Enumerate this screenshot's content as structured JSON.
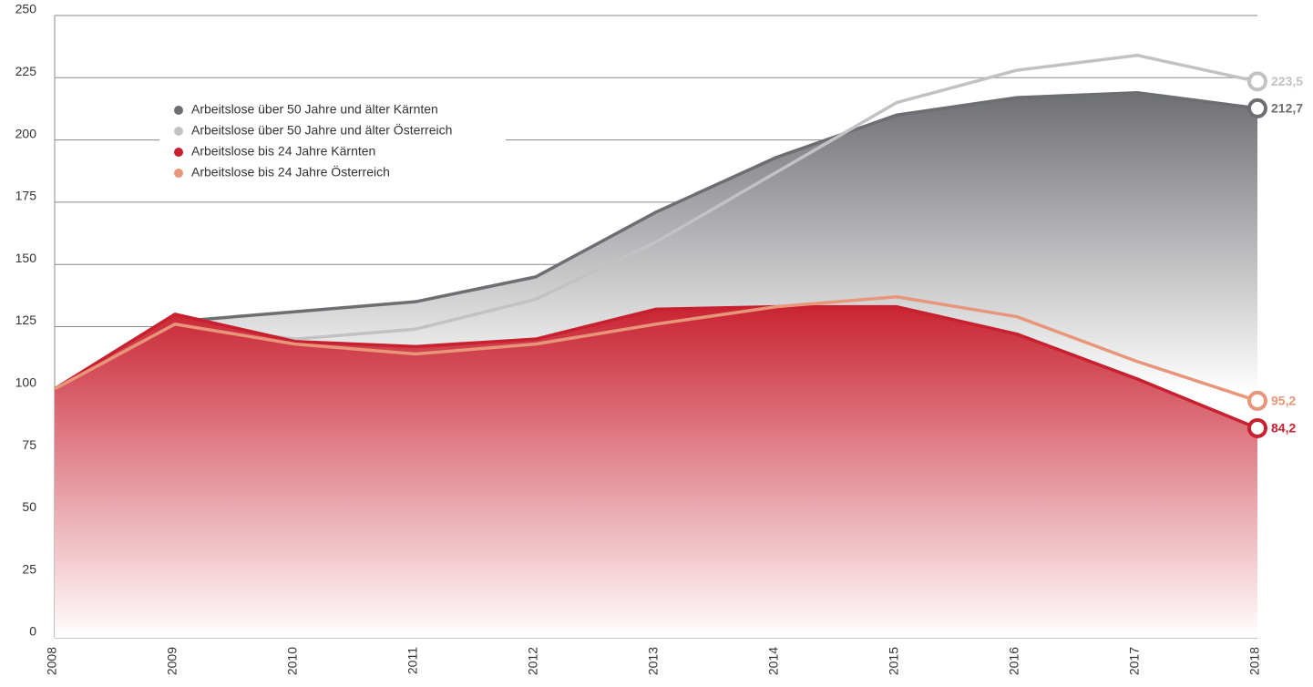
{
  "chart_data": {
    "type": "line",
    "x": [
      2008,
      2009,
      2010,
      2011,
      2012,
      2013,
      2014,
      2015,
      2016,
      2017,
      2018
    ],
    "xlim": [
      2008,
      2018
    ],
    "ylim": [
      0,
      250
    ],
    "yticks": [
      0,
      25,
      50,
      75,
      100,
      125,
      150,
      175,
      200,
      225,
      250
    ],
    "grid": true,
    "legend": "upper left",
    "series": [
      {
        "name": "Arbeitslose über 50 Jahre und älter Kärnten",
        "color": "#6d6e71",
        "fill": true,
        "values": [
          100,
          127,
          131,
          135,
          145,
          171,
          193,
          210,
          217,
          219,
          212.7
        ],
        "value_labels": [
          null,
          null,
          null,
          null,
          null,
          null,
          null,
          null,
          null,
          null,
          "212,7"
        ]
      },
      {
        "name": "Arbeitslose über 50 Jahre und älter Österreich",
        "color": "#c2c2c4",
        "fill": false,
        "values": [
          100,
          126,
          120,
          124,
          136,
          159,
          187,
          215,
          228,
          234,
          223.5
        ],
        "value_labels": [
          null,
          null,
          null,
          null,
          null,
          null,
          null,
          null,
          null,
          null,
          "223,5"
        ]
      },
      {
        "name": "Arbeitslose bis 24 Jahre Kärnten",
        "color": "#c8202f",
        "fill": true,
        "values": [
          100,
          130,
          119,
          117,
          120,
          132,
          133,
          133,
          122,
          104,
          84.2
        ],
        "value_labels": [
          null,
          null,
          null,
          null,
          null,
          null,
          null,
          null,
          null,
          null,
          "84,2"
        ]
      },
      {
        "name": "Arbeitslose bis 24 Jahre Österreich",
        "color": "#e8967a",
        "fill": false,
        "values": [
          100,
          126,
          118,
          114,
          118,
          126,
          133,
          137,
          129,
          111,
          95.2
        ],
        "value_labels": [
          null,
          null,
          null,
          null,
          null,
          null,
          null,
          null,
          null,
          null,
          "95,2"
        ]
      }
    ]
  }
}
